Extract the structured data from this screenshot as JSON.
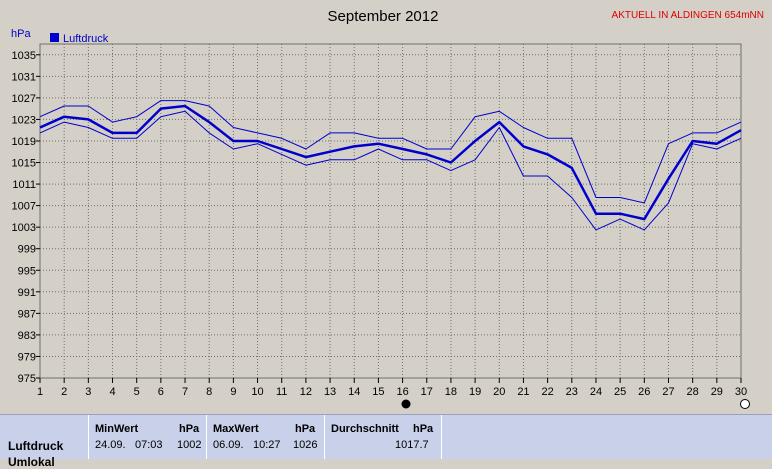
{
  "header": {
    "status": "AKTUELL IN ALDINGEN 654mNN"
  },
  "chart_data": {
    "type": "line",
    "title": "September 2012",
    "ylabel": "hPa",
    "xlabel": "",
    "legend": "Luftdruck",
    "legend_placement": "top-left",
    "grid": true,
    "ylim": [
      975,
      1037
    ],
    "xlim": [
      1,
      30
    ],
    "yticks": [
      975,
      979,
      983,
      987,
      991,
      995,
      999,
      1003,
      1007,
      1011,
      1015,
      1019,
      1023,
      1027,
      1031,
      1035
    ],
    "x": [
      1,
      2,
      3,
      4,
      5,
      6,
      7,
      8,
      9,
      10,
      11,
      12,
      13,
      14,
      15,
      16,
      17,
      18,
      19,
      20,
      21,
      22,
      23,
      24,
      25,
      26,
      27,
      28,
      29,
      30
    ],
    "series": [
      {
        "name": "Luftdruck",
        "values": [
          1021.5,
          1023.5,
          1023,
          1020.5,
          1020.5,
          1025,
          1025.5,
          1022.5,
          1019,
          1019,
          1017.5,
          1016,
          1017,
          1018,
          1018.5,
          1017.5,
          1016.5,
          1015,
          1019,
          1022.5,
          1018,
          1016.5,
          1014,
          1005.5,
          1005.5,
          1004.5,
          1012,
          1019,
          1018.5,
          1021
        ]
      },
      {
        "name": "",
        "values": [
          1023.5,
          1025.5,
          1025.5,
          1022.5,
          1023.5,
          1026.5,
          1026.5,
          1025.5,
          1021.5,
          1020.5,
          1019.5,
          1017.5,
          1020.5,
          1020.5,
          1019.5,
          1019.5,
          1017.5,
          1017.5,
          1023.5,
          1024.5,
          1021.5,
          1019.5,
          1019.5,
          1008.5,
          1008.5,
          1007.5,
          1018.5,
          1020.5,
          1020.5,
          1022.5
        ]
      },
      {
        "name": "",
        "values": [
          1020.5,
          1022.5,
          1021.5,
          1019.5,
          1019.5,
          1023.5,
          1024.5,
          1020.5,
          1017.5,
          1018.5,
          1016.5,
          1014.5,
          1015.5,
          1015.5,
          1017.5,
          1015.5,
          1015.5,
          1013.5,
          1015.5,
          1021.5,
          1012.5,
          1012.5,
          1008.5,
          1002.5,
          1004.5,
          1002.5,
          1007.5,
          1018.5,
          1017.5,
          1019.5
        ]
      }
    ],
    "colors": {
      "main": "#0000cc",
      "band": "#0000cc",
      "grid": "#6f6f6f",
      "plot_bg": "#d4d0c8"
    }
  },
  "stats": {
    "row_label": "Luftdruck",
    "row_label_2": "Umlokal",
    "min_header": "MinWert",
    "min_unit": "hPa",
    "min_date": "24.09.",
    "min_time": "07:03",
    "min_value": "1002",
    "max_header": "MaxWert",
    "max_unit": "hPa",
    "max_date": "06.09.",
    "max_time": "10:27",
    "max_value": "1026",
    "avg_header": "Durchschnitt",
    "avg_unit": "hPa",
    "avg_value": "1017.7"
  }
}
